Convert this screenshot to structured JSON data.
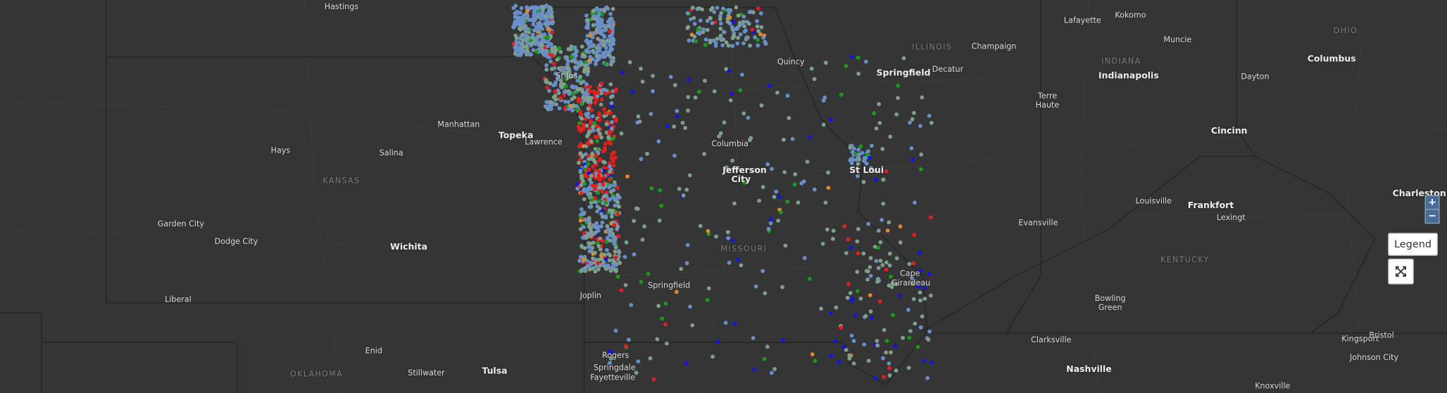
{
  "map": {
    "cities": [
      "Hastings",
      "Lafayette",
      "Kokomo",
      "Champaign",
      "Quincy",
      "Muncie",
      "Columbus",
      "St Jos",
      "Springfield",
      "Decatur",
      "Indianapolis",
      "Dayton",
      "Manhattan",
      "Terre Haute",
      "Topeka",
      "Lawrence",
      "Columbia",
      "Hays",
      "Salina",
      "Cincinn",
      "St Loui",
      "Jefferson City",
      "Charleston",
      "Louisville",
      "Frankfort",
      "Lexingt",
      "Garden City",
      "Evansville",
      "Dodge City",
      "Wichita",
      "Cape Girardeau",
      "Springfield",
      "Liberal",
      "Joplin",
      "Bowling Green",
      "Clarksville",
      "Bristol",
      "Kingsport",
      "Rogers",
      "Enid",
      "Johnson City",
      "Nashville",
      "Springdale",
      "Stillwater",
      "Tulsa",
      "Fayetteville",
      "Knoxville"
    ],
    "states": [
      "ILLINOIS",
      "INDIANA",
      "OHIO",
      "KANSAS",
      "MISSOURI",
      "KENTUCKY",
      "OKLAHOMA"
    ]
  },
  "controls": {
    "zoom_in": "+",
    "zoom_out": "−",
    "legend": "Legend"
  }
}
